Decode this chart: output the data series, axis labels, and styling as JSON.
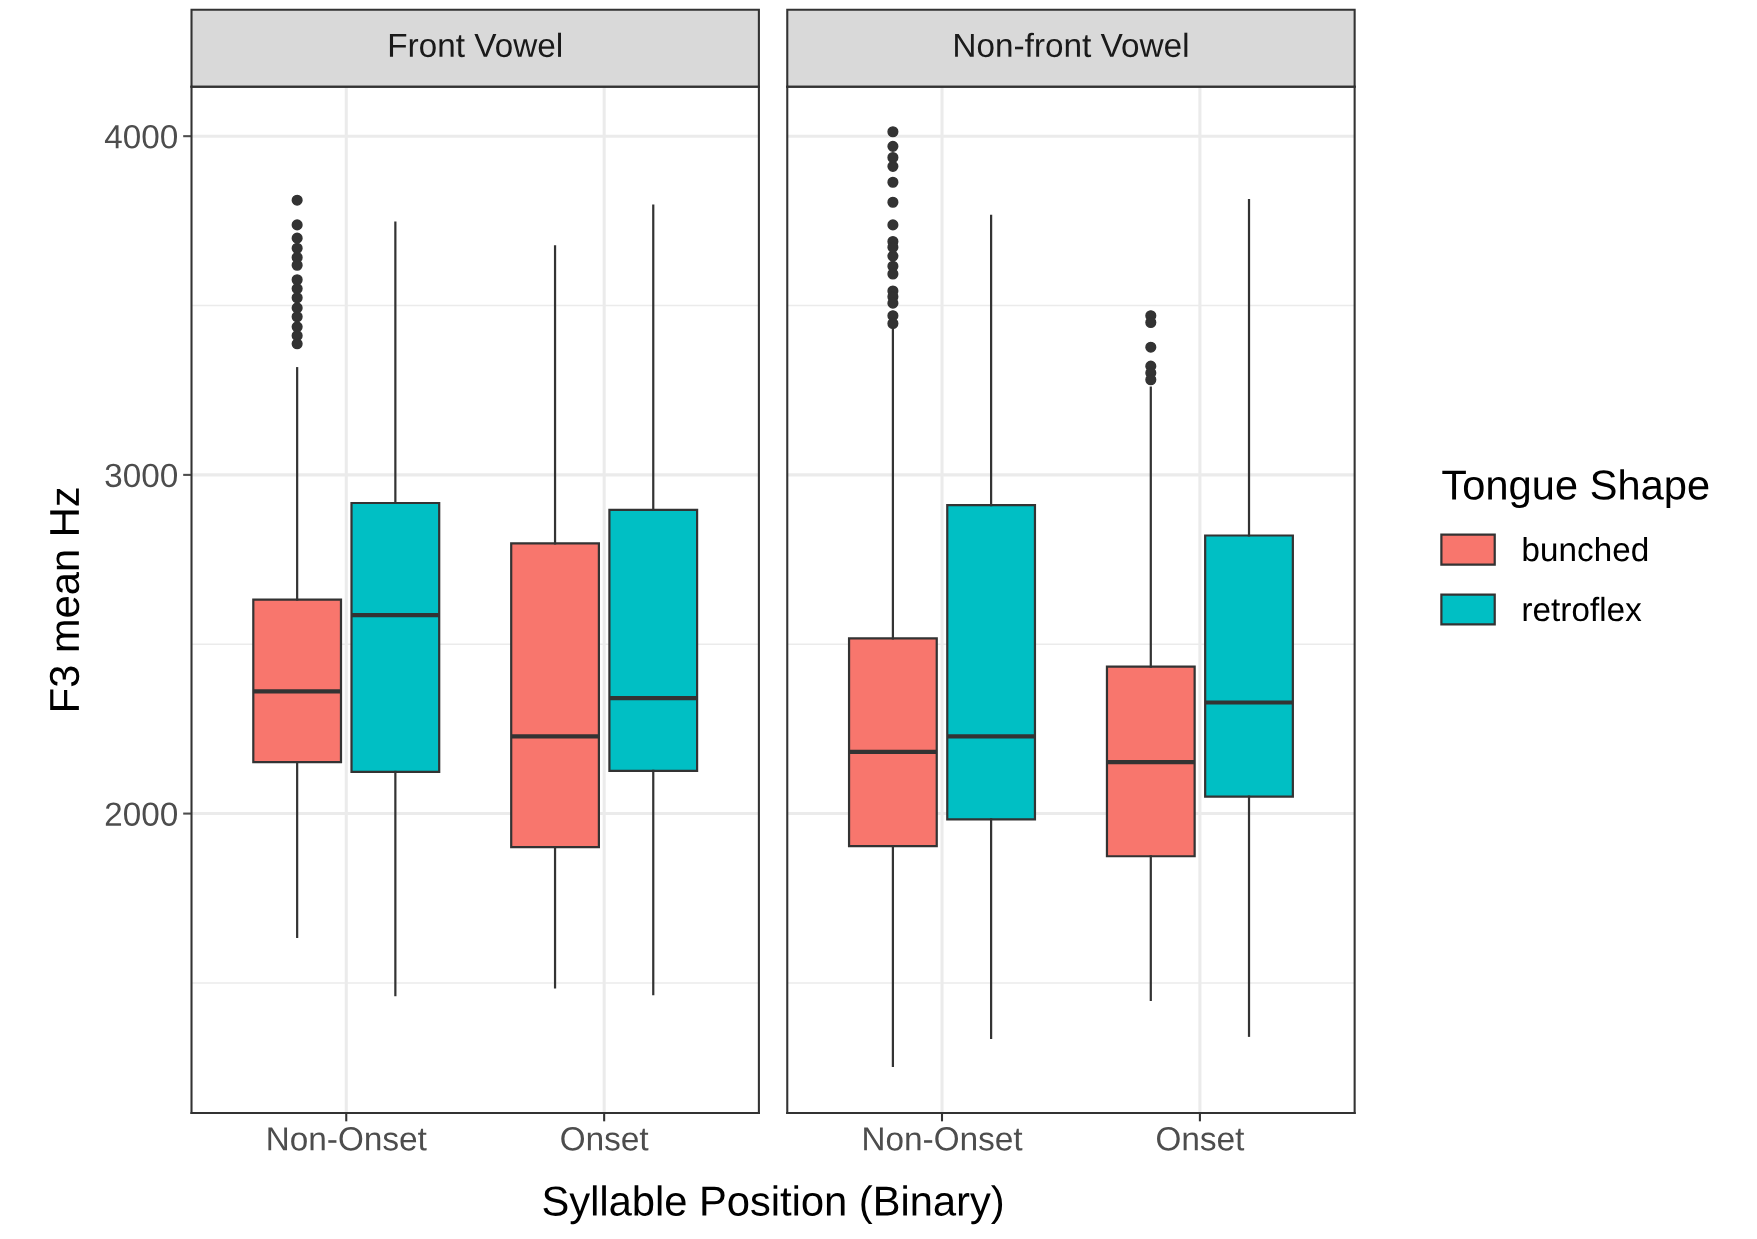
{
  "chart_data": [
    {
      "type": "box",
      "title": "Front Vowel",
      "xlabel": "Syllable Position (Binary)",
      "ylabel": "F3 mean Hz",
      "categories": [
        "Non-Onset",
        "Onset"
      ],
      "ylim": [
        1116,
        4146
      ],
      "yticks": [
        2000,
        3000,
        4000
      ],
      "grid": true,
      "series": [
        {
          "color": "#f8766d",
          "boxes": [
            {
              "low": 1636,
              "q1": 2152,
              "median": 2361,
              "q3": 2632,
              "high": 3315,
              "outliers": [
                3811,
                3738,
                3699,
                3669,
                3642,
                3619,
                3576,
                3550,
                3523,
                3493,
                3467,
                3437,
                3411,
                3387
              ]
            },
            {
              "low": 1487,
              "q1": 1901,
              "median": 2228,
              "q3": 2798,
              "high": 3675
            }
          ]
        },
        {
          "color": "#00bfc4",
          "boxes": [
            {
              "low": 1464,
              "q1": 2123,
              "median": 2586,
              "q3": 2917,
              "high": 3745
            },
            {
              "low": 1467,
              "q1": 2126,
              "median": 2341,
              "q3": 2897,
              "high": 3795
            }
          ]
        }
      ]
    },
    {
      "type": "box",
      "title": "Non-front Vowel",
      "categories": [
        "Non-Onset",
        "Onset"
      ],
      "ylim": [
        1116,
        4146
      ],
      "yticks": [
        2000,
        3000,
        4000
      ],
      "grid": true,
      "tick_labels": "x",
      "legend": "right",
      "legend_title": "Tongue Shape",
      "series": [
        {
          "name": "bunched",
          "color": "#f8766d",
          "boxes": [
            {
              "low": 1255,
              "q1": 1904,
              "median": 2182,
              "q3": 2517,
              "high": 3434,
              "outliers": [
                4013,
                3970,
                3937,
                3911,
                3864,
                3805,
                3738,
                3689,
                3672,
                3646,
                3616,
                3593,
                3543,
                3526,
                3507,
                3470,
                3447
              ]
            },
            {
              "low": 1450,
              "q1": 1874,
              "median": 2152,
              "q3": 2434,
              "high": 3258,
              "outliers": [
                3470,
                3450,
                3377,
                3321,
                3301,
                3281
              ]
            }
          ]
        },
        {
          "name": "retroflex",
          "color": "#00bfc4",
          "boxes": [
            {
              "low": 1338,
              "q1": 1983,
              "median": 2228,
              "q3": 2911,
              "high": 3765
            },
            {
              "low": 1344,
              "q1": 2050,
              "median": 2328,
              "q3": 2821,
              "high": 3811
            }
          ]
        }
      ]
    }
  ]
}
